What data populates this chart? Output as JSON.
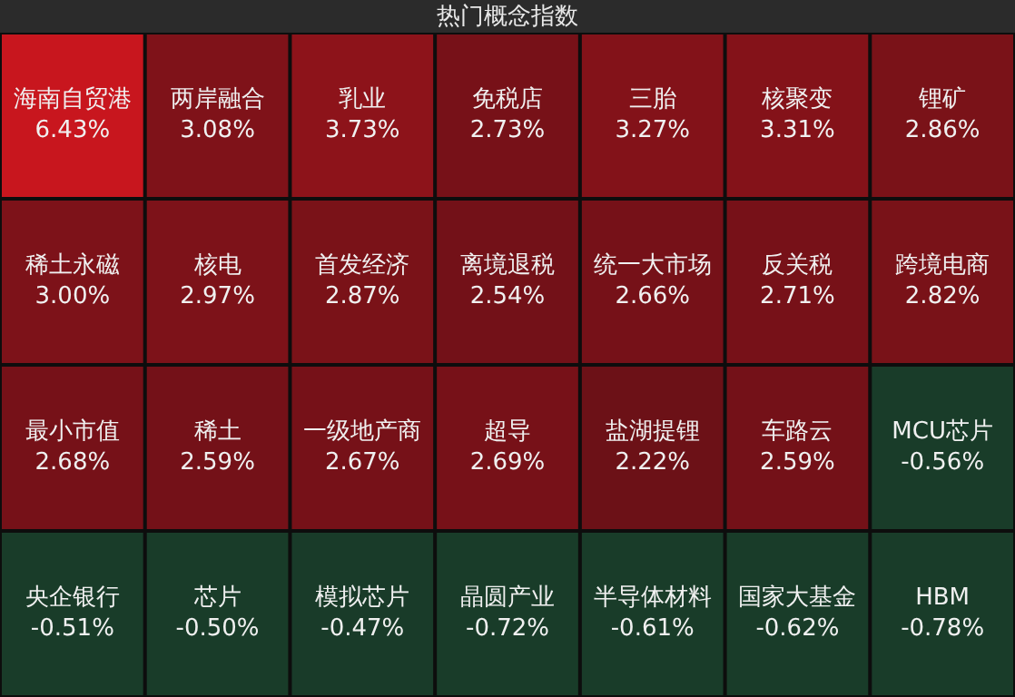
{
  "chart_data": {
    "type": "other",
    "title": "热门概念指数",
    "categories": [
      "海南自贸港",
      "两岸融合",
      "乳业",
      "免税店",
      "三胎",
      "核聚变",
      "锂矿",
      "稀土永磁",
      "核电",
      "首发经济",
      "离境退税",
      "统一大市场",
      "反关税",
      "跨境电商",
      "最小市值",
      "稀土",
      "一级地产商",
      "超导",
      "盐湖提锂",
      "车路云",
      "MCU芯片",
      "央企银行",
      "芯片",
      "模拟芯片",
      "晶圆产业",
      "半导体材料",
      "国家大基金",
      "HBM"
    ],
    "values": [
      6.43,
      3.08,
      3.73,
      2.73,
      3.27,
      3.31,
      2.86,
      3.0,
      2.97,
      2.87,
      2.54,
      2.66,
      2.71,
      2.82,
      2.68,
      2.59,
      2.67,
      2.69,
      2.22,
      2.59,
      -0.56,
      -0.51,
      -0.5,
      -0.47,
      -0.72,
      -0.61,
      -0.62,
      -0.78
    ],
    "value_labels": [
      "6.43%",
      "3.08%",
      "3.73%",
      "2.73%",
      "3.27%",
      "3.31%",
      "2.86%",
      "3.00%",
      "2.97%",
      "2.87%",
      "2.54%",
      "2.66%",
      "2.71%",
      "2.82%",
      "2.68%",
      "2.59%",
      "2.67%",
      "2.69%",
      "2.22%",
      "2.59%",
      "-0.56%",
      "-0.51%",
      "-0.50%",
      "-0.47%",
      "-0.72%",
      "-0.61%",
      "-0.62%",
      "-0.78%"
    ]
  }
}
